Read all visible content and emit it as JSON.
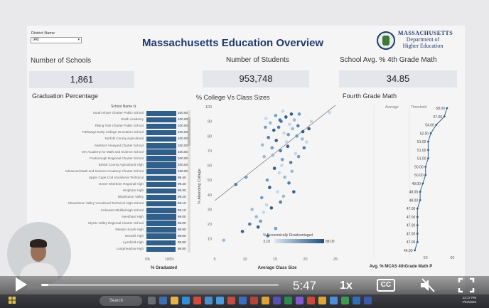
{
  "dashboard": {
    "title": "Massachusetts Education Overview",
    "filter": {
      "label": "District Name",
      "value": "(All)"
    },
    "logo": {
      "line1": "MASSACHUSETTS",
      "line2": "Department of",
      "line3": "Higher Education"
    }
  },
  "kpis": [
    {
      "title": "Number of Schools",
      "value": "1,861"
    },
    {
      "title": "Number of Students",
      "value": "953,748"
    },
    {
      "title": "School Avg. % 4th Grade Math",
      "value": "34.85"
    }
  ],
  "graduation": {
    "title": "Graduation Percentage",
    "column_header": "School Name",
    "axis_label": "% Graduated",
    "axis_ticks": [
      "0%",
      "100%"
    ],
    "rows": [
      {
        "school": "South Shore Charter Public School",
        "value": "100.00"
      },
      {
        "school": "Smith Academy",
        "value": "100.00"
      },
      {
        "school": "Rising Tide Charter Public School",
        "value": "100.00"
      },
      {
        "school": "Pathways Early College Innovation School",
        "value": "100.00"
      },
      {
        "school": "Norfolk County Agricultural",
        "value": "100.00"
      },
      {
        "school": "Martha's Vineyard Charter School",
        "value": "100.00"
      },
      {
        "school": "MA Academy for Math and Science School",
        "value": "100.00"
      },
      {
        "school": "Foxborough Regional Charter School",
        "value": "100.00"
      },
      {
        "school": "Bristol County Agricultural High",
        "value": "100.00"
      },
      {
        "school": "Advanced Math and Science Academy Charter School",
        "value": "100.00"
      },
      {
        "school": "Upper Cape Cod Vocational Technical",
        "value": "99.40"
      },
      {
        "school": "Dover-Sherborn Regional High",
        "value": "99.40"
      },
      {
        "school": "Hingham High",
        "value": "99.30"
      },
      {
        "school": "Blackstone Valley",
        "value": "99.20"
      },
      {
        "school": "Shawsheen Valley Vocational Technical High School",
        "value": "99.10"
      },
      {
        "school": "Cohasset Middle/High School",
        "value": "99.10"
      },
      {
        "school": "Needham High",
        "value": "99.00"
      },
      {
        "school": "Mystic Valley Regional Charter School",
        "value": "99.00"
      },
      {
        "school": "Newton South High",
        "value": "98.90"
      },
      {
        "school": "Norwell High",
        "value": "98.90"
      },
      {
        "school": "Lynnfield High",
        "value": "98.80"
      },
      {
        "school": "Longmeadow High",
        "value": "98.80"
      }
    ]
  },
  "chart_data": [
    {
      "type": "scatter",
      "title": "% College Vs Class Sizes",
      "xlabel": "Average Class Size",
      "ylabel": "% Attending College",
      "xlim": [
        5,
        25
      ],
      "ylim": [
        5,
        100
      ],
      "x_ticks": [
        "5",
        "10",
        "15",
        "20",
        "25"
      ],
      "y_ticks": [
        "10",
        "20",
        "30",
        "40",
        "50",
        "60",
        "70",
        "80",
        "90",
        "100"
      ],
      "color_legend": {
        "title": "% Economically Disadvantaged",
        "min": "3.10",
        "max": "88.00"
      },
      "trend_line": {
        "x": [
          5,
          25
        ],
        "y": [
          36,
          101
        ]
      },
      "series": [
        {
          "points": [
            [
              13.5,
              92
            ],
            [
              14.2,
              89
            ],
            [
              15.1,
              94
            ],
            [
              16,
              90
            ],
            [
              16.8,
              93
            ],
            [
              17.4,
              88
            ],
            [
              18.2,
              91
            ],
            [
              19,
              95
            ],
            [
              15.6,
              86
            ],
            [
              14.8,
              84
            ],
            [
              16.5,
              82
            ],
            [
              17.9,
              85
            ],
            [
              18.6,
              80
            ],
            [
              13.9,
              79
            ],
            [
              15.2,
              77
            ],
            [
              16.9,
              76
            ],
            [
              19.5,
              78
            ],
            [
              14.5,
              72
            ],
            [
              15.9,
              70
            ],
            [
              17.1,
              73
            ],
            [
              18.4,
              68
            ],
            [
              13.2,
              66
            ],
            [
              16.2,
              64
            ],
            [
              17.6,
              62
            ],
            [
              14.9,
              58
            ],
            [
              15.7,
              55
            ],
            [
              16.6,
              52
            ],
            [
              13.7,
              50
            ],
            [
              17.3,
              48
            ],
            [
              14.1,
              45
            ],
            [
              15.4,
              42
            ],
            [
              16.4,
              39
            ],
            [
              12.8,
              38
            ],
            [
              15.9,
              35
            ],
            [
              14.4,
              31
            ],
            [
              13.1,
              28
            ],
            [
              11.9,
              25
            ],
            [
              12.6,
              22
            ],
            [
              10.8,
              20
            ],
            [
              9.6,
              15
            ],
            [
              13.6,
              33
            ],
            [
              17.8,
              56
            ],
            [
              18.9,
              66
            ],
            [
              19.8,
              72
            ],
            [
              20.6,
              85
            ],
            [
              21,
              90
            ],
            [
              11.2,
              30
            ],
            [
              10.2,
              52
            ],
            [
              8.5,
              47
            ],
            [
              12.2,
              18
            ],
            [
              24,
              96
            ],
            [
              6.5,
              9
            ],
            [
              15.1,
              17
            ],
            [
              13.8,
              12
            ],
            [
              18.1,
              42
            ],
            [
              16.1,
              60
            ],
            [
              14.6,
              67
            ],
            [
              17.2,
              81
            ],
            [
              18.8,
              87
            ],
            [
              19.6,
              83
            ],
            [
              20.2,
              76
            ],
            [
              12.9,
              74
            ],
            [
              13.4,
              86
            ],
            [
              15.8,
              91
            ],
            [
              17.7,
              95
            ],
            [
              16.3,
              97
            ]
          ]
        }
      ]
    },
    {
      "type": "line",
      "title": "Fourth Grade Math",
      "xlabel": "Avg. % MCAS 4thGrade Math P",
      "x_ticks": [
        "50",
        "60"
      ],
      "column_labels": [
        "Average",
        "Threshold"
      ],
      "values": [
        58.0,
        57.0,
        54.0,
        52.0,
        51.0,
        51.0,
        51.0,
        50.0,
        50.0,
        49.0,
        48.0,
        48.0,
        47.0,
        47.0,
        47.0,
        47.0,
        47.0,
        46.0
      ],
      "point_labels": [
        "58.00",
        "57.00",
        "54.00",
        "52.00",
        "51.00",
        "51.00",
        "51.00",
        "50.00",
        "50.00",
        "49.00",
        "48.00",
        "48.00",
        "47.00",
        "47.00",
        "47.00",
        "47.00",
        "47.00",
        "46.00"
      ]
    }
  ],
  "player": {
    "timecode": "5:47",
    "speed": "1x",
    "cc_label": "CC",
    "progress": 0.03
  },
  "taskbar": {
    "search_label": "Search",
    "clock_time": "12:17 PM",
    "clock_date": "7/22/2025"
  }
}
